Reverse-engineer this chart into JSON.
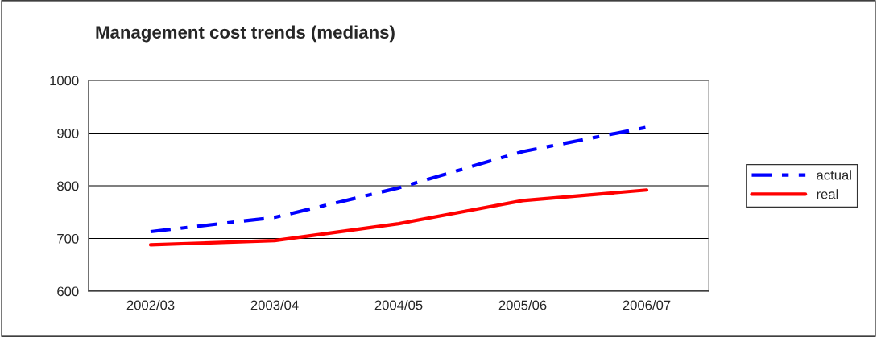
{
  "chart_data": {
    "type": "line",
    "title": "Management cost trends (medians)",
    "categories": [
      "2002/03",
      "2003/04",
      "2004/05",
      "2005/06",
      "2006/07"
    ],
    "series": [
      {
        "name": "actual",
        "color": "#0000ff",
        "values": [
          713,
          740,
          796,
          865,
          911
        ],
        "line_style": "dashed"
      },
      {
        "name": "real",
        "color": "#ff0000",
        "values": [
          688,
          696,
          728,
          772,
          792
        ],
        "line_style": "solid"
      }
    ],
    "ylim": [
      600,
      1000
    ],
    "yticks": [
      600,
      700,
      800,
      900,
      1000
    ],
    "grid": "y",
    "legend": "right",
    "marker": "none"
  }
}
